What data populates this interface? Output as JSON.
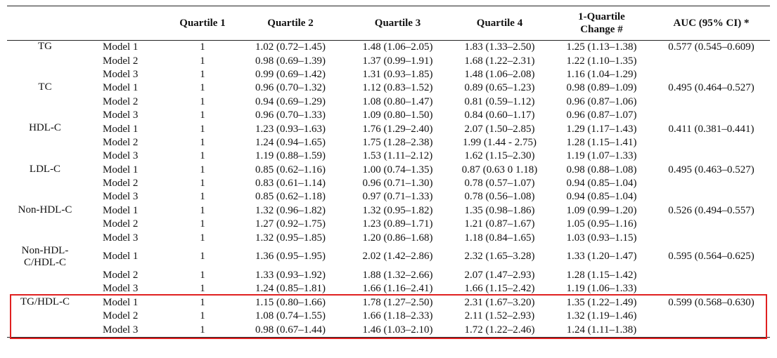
{
  "header": {
    "columns": [
      "Quartile 1",
      "Quartile 2",
      "Quartile 3",
      "Quartile 4",
      "1-Quartile Change #",
      "AUC (95% CI) *"
    ]
  },
  "groups": [
    {
      "label": "TG",
      "rows": [
        [
          "Model 1",
          "1",
          "1.02 (0.72–1.45)",
          "1.48 (1.06–2.05)",
          "1.83 (1.33–2.50)",
          "1.25 (1.13–1.38)",
          "0.577 (0.545–0.609)"
        ],
        [
          "Model 2",
          "1",
          "0.98 (0.69–1.39)",
          "1.37 (0.99–1.91)",
          "1.68 (1.22–2.31)",
          "1.22 (1.10–1.35)"
        ],
        [
          "Model 3",
          "1",
          "0.99 (0.69–1.42)",
          "1.31 (0.93–1.85)",
          "1.48 (1.06–2.08)",
          "1.16 (1.04–1.29)"
        ]
      ]
    },
    {
      "label": "TC",
      "rows": [
        [
          "Model 1",
          "1",
          "0.96 (0.70–1.32)",
          "1.12 (0.83–1.52)",
          "0.89 (0.65–1.23)",
          "0.98 (0.89–1.09)",
          "0.495 (0.464–0.527)"
        ],
        [
          "Model 2",
          "1",
          "0.94 (0.69–1.29)",
          "1.08 (0.80–1.47)",
          "0.81 (0.59–1.12)",
          "0.96 (0.87–1.06)"
        ],
        [
          "Model 3",
          "1",
          "0.96 (0.70–1.33)",
          "1.09 (0.80–1.50)",
          "0.84 (0.60–1.17)",
          "0.96 (0.87–1.07)"
        ]
      ]
    },
    {
      "label": "HDL-C",
      "rows": [
        [
          "Model 1",
          "1",
          "1.23 (0.93–1.63)",
          "1.76 (1.29–2.40)",
          "2.07 (1.50–2.85)",
          "1.29 (1.17–1.43)",
          "0.411 (0.381–0.441)"
        ],
        [
          "Model 2",
          "1",
          "1.24 (0.94–1.65)",
          "1.75 (1.28–2.38)",
          "1.99 (1.44 - 2.75)",
          "1.28 (1.15–1.41)"
        ],
        [
          "Model 3",
          "1",
          "1.19 (0.88–1.59)",
          "1.53 (1.11–2.12)",
          "1.62 (1.15–2.30)",
          "1.19 (1.07–1.33)"
        ]
      ]
    },
    {
      "label": "LDL-C",
      "rows": [
        [
          "Model 1",
          "1",
          "0.85 (0.62–1.16)",
          "1.00 (0.74–1.35)",
          "0.87 (0.63 0 1.18)",
          "0.98 (0.88–1.08)",
          "0.495 (0.463–0.527)"
        ],
        [
          "Model 2",
          "1",
          "0.83 (0.61–1.14)",
          "0.96 (0.71–1.30)",
          "0.78 (0.57–1.07)",
          "0.94 (0.85–1.04)"
        ],
        [
          "Model 3",
          "1",
          "0.85 (0.62–1.18)",
          "0.97 (0.71–1.33)",
          "0.78 (0.56–1.08)",
          "0.94 (0.85–1.04)"
        ]
      ]
    },
    {
      "label": "Non-HDL-C",
      "rows": [
        [
          "Model 1",
          "1",
          "1.32 (0.96–1.82)",
          "1.32 (0.95–1.82)",
          "1.35 (0.98–1.86)",
          "1.09 (0.99–1.20)",
          "0.526 (0.494–0.557)"
        ],
        [
          "Model 2",
          "1",
          "1.27 (0.92–1.75)",
          "1.23 (0.89–1.71)",
          "1.21 (0.87–1.67)",
          "1.05 (0.95–1.16)"
        ],
        [
          "Model 3",
          "1",
          "1.32 (0.95–1.85)",
          "1.20 (0.86–1.68)",
          "1.18 (0.84–1.65)",
          "1.03 (0.93–1.15)"
        ]
      ]
    },
    {
      "label": "Non-HDL-C/HDL-C",
      "rows": [
        [
          "Model 1",
          "1",
          "1.36 (0.95–1.95)",
          "2.02 (1.42–2.86)",
          "2.32 (1.65–3.28)",
          "1.33 (1.20–1.47)",
          "0.595 (0.564–0.625)"
        ],
        [
          "Model 2",
          "1",
          "1.33 (0.93–1.92)",
          "1.88 (1.32–2.66)",
          "2.07 (1.47–2.93)",
          "1.28 (1.15–1.42)"
        ],
        [
          "Model 3",
          "1",
          "1.24 (0.85–1.81)",
          "1.66 (1.16–2.41)",
          "1.66 (1.15–2.42)",
          "1.19 (1.06–1.33)"
        ]
      ]
    },
    {
      "label": "TG/HDL-C",
      "rows": [
        [
          "Model 1",
          "1",
          "1.15 (0.80–1.66)",
          "1.78 (1.27–2.50)",
          "2.31 (1.67–3.20)",
          "1.35 (1.22–1.49)",
          "0.599 (0.568–0.630)"
        ],
        [
          "Model 2",
          "1",
          "1.08 (0.74–1.55)",
          "1.66 (1.18–2.33)",
          "2.11 (1.52–2.93)",
          "1.32 (1.19–1.46)"
        ],
        [
          "Model 3",
          "1",
          "0.98 (0.67–1.44)",
          "1.46 (1.03–2.10)",
          "1.72 (1.22–2.46)",
          "1.24 (1.11–1.38)"
        ]
      ]
    }
  ]
}
